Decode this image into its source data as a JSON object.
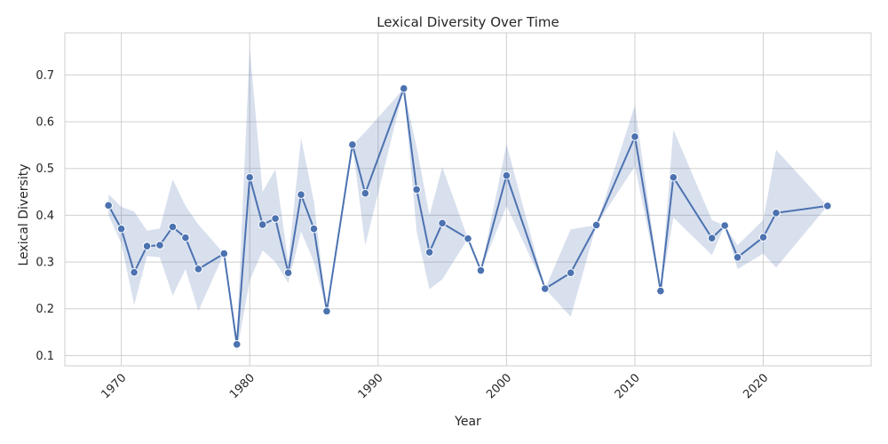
{
  "chart_data": {
    "type": "line",
    "title": "Lexical Diversity Over Time",
    "xlabel": "Year",
    "ylabel": "Lexical Diversity",
    "xlim": [
      1965.6,
      2028.4
    ],
    "ylim": [
      0.078,
      0.79
    ],
    "x_ticks": [
      1970,
      1980,
      1990,
      2000,
      2010,
      2020
    ],
    "y_ticks": [
      0.1,
      0.2,
      0.3,
      0.4,
      0.5,
      0.6,
      0.7
    ],
    "grid": true,
    "color": "#4c72b0",
    "band_color": "#4c72b0",
    "series": [
      {
        "points": [
          {
            "x": 1969,
            "y": 0.421,
            "lo": 0.4,
            "hi": 0.445
          },
          {
            "x": 1970,
            "y": 0.371,
            "lo": 0.34,
            "hi": 0.418
          },
          {
            "x": 1971,
            "y": 0.278,
            "lo": 0.208,
            "hi": 0.408
          },
          {
            "x": 1972,
            "y": 0.334,
            "lo": 0.313,
            "hi": 0.367
          },
          {
            "x": 1973,
            "y": 0.336,
            "lo": 0.31,
            "hi": 0.372
          },
          {
            "x": 1974,
            "y": 0.375,
            "lo": 0.228,
            "hi": 0.477
          },
          {
            "x": 1975,
            "y": 0.352,
            "lo": 0.285,
            "hi": 0.42
          },
          {
            "x": 1976,
            "y": 0.285,
            "lo": 0.195,
            "hi": 0.38
          },
          {
            "x": 1978,
            "y": 0.318,
            "lo": 0.318,
            "hi": 0.318
          },
          {
            "x": 1979,
            "y": 0.124,
            "lo": 0.108,
            "hi": 0.14
          },
          {
            "x": 1980,
            "y": 0.481,
            "lo": 0.26,
            "hi": 0.758
          },
          {
            "x": 1981,
            "y": 0.38,
            "lo": 0.325,
            "hi": 0.45
          },
          {
            "x": 1982,
            "y": 0.393,
            "lo": 0.3,
            "hi": 0.498
          },
          {
            "x": 1983,
            "y": 0.277,
            "lo": 0.255,
            "hi": 0.3
          },
          {
            "x": 1984,
            "y": 0.444,
            "lo": 0.365,
            "hi": 0.565
          },
          {
            "x": 1985,
            "y": 0.371,
            "lo": 0.3,
            "hi": 0.43
          },
          {
            "x": 1986,
            "y": 0.195,
            "lo": 0.195,
            "hi": 0.195
          },
          {
            "x": 1988,
            "y": 0.551,
            "lo": 0.551,
            "hi": 0.551
          },
          {
            "x": 1989,
            "y": 0.447,
            "lo": 0.335,
            "hi": 0.578
          },
          {
            "x": 1992,
            "y": 0.671,
            "lo": 0.671,
            "hi": 0.671
          },
          {
            "x": 1993,
            "y": 0.455,
            "lo": 0.365,
            "hi": 0.545
          },
          {
            "x": 1994,
            "y": 0.321,
            "lo": 0.242,
            "hi": 0.4
          },
          {
            "x": 1995,
            "y": 0.383,
            "lo": 0.263,
            "hi": 0.503
          },
          {
            "x": 1997,
            "y": 0.35,
            "lo": 0.35,
            "hi": 0.35
          },
          {
            "x": 1998,
            "y": 0.282,
            "lo": 0.282,
            "hi": 0.282
          },
          {
            "x": 2000,
            "y": 0.485,
            "lo": 0.42,
            "hi": 0.552
          },
          {
            "x": 2003,
            "y": 0.243,
            "lo": 0.243,
            "hi": 0.243
          },
          {
            "x": 2005,
            "y": 0.277,
            "lo": 0.183,
            "hi": 0.37
          },
          {
            "x": 2007,
            "y": 0.379,
            "lo": 0.379,
            "hi": 0.379
          },
          {
            "x": 2010,
            "y": 0.568,
            "lo": 0.505,
            "hi": 0.635
          },
          {
            "x": 2012,
            "y": 0.238,
            "lo": 0.238,
            "hi": 0.238
          },
          {
            "x": 2013,
            "y": 0.481,
            "lo": 0.395,
            "hi": 0.583
          },
          {
            "x": 2016,
            "y": 0.351,
            "lo": 0.315,
            "hi": 0.39
          },
          {
            "x": 2017,
            "y": 0.378,
            "lo": 0.378,
            "hi": 0.378
          },
          {
            "x": 2018,
            "y": 0.31,
            "lo": 0.285,
            "hi": 0.336
          },
          {
            "x": 2020,
            "y": 0.353,
            "lo": 0.318,
            "hi": 0.39
          },
          {
            "x": 2021,
            "y": 0.405,
            "lo": 0.288,
            "hi": 0.54
          },
          {
            "x": 2025,
            "y": 0.42,
            "lo": 0.42,
            "hi": 0.42
          }
        ]
      }
    ]
  }
}
